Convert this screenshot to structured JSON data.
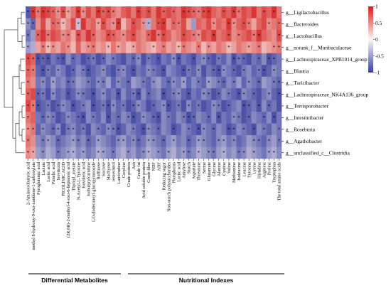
{
  "chart_data": {
    "type": "heatmap",
    "rows": [
      "g__Ligilactobacillus",
      "g__Bacteroides",
      "g__Lactobacillus",
      "g__norank_f__Muribaculaceae",
      "g__Lachnospiraceae_XPB1014_group",
      "g__Blautia",
      "g__Turicibacter",
      "g__Lachnospiraceae_NK4A136_group",
      "g__Terrisporobacter",
      "g__Intestinibacter",
      "g__Roseburia",
      "g__Agathobacter",
      "g__unclassified_c__Clostridia"
    ],
    "columns": [
      "2-Aminoisobutyric acid",
      "methyl 8-hydroxy-9-oxo-xanthene-1-carboxylate",
      "Pyroglutamic acid",
      "Lactate",
      "Lactic acid",
      "Pimelic acid",
      "Isovitexin",
      "PICOLINIC ACID",
      "(2R,6R)-2-methyl-4-oxo-6-heptanoic acid",
      "Thymyl_acetate",
      "N-Acetyl-L-Tyrosine",
      "Isovaleric acid",
      "Isobutyrylcarnitine",
      "1-O-dodecanoyl-glucopyranoside",
      "Raffinose",
      "Sucrose",
      "Stachyose",
      "resveratrol",
      "Lamivudine",
      "Coryline",
      "Crude protein",
      "Ash",
      "Crude fat",
      "Acid soluble protein",
      "Crude fiber",
      "NDF",
      "ADF",
      "Reducing sugar",
      "Non-starch polysaccharides",
      "Phosphorus",
      "Lactic acid",
      "Amylose",
      "Starch",
      "Aspartate",
      "Threonine",
      "Serine",
      "Glutamate",
      "Glycine",
      "Alanine",
      "Cystine",
      "Valine",
      "Methionine",
      "Isoleucine",
      "Leucine",
      "Tyrosine",
      "Lysine",
      "Histidine",
      "Arginine",
      "Proline",
      "Tryptophan",
      "The total amino acids"
    ],
    "values": [
      [
        -0.85,
        0.9,
        0.6,
        0.9,
        0.8,
        0.7,
        0.5,
        0.8,
        0.4,
        0.6,
        0.9,
        0.5,
        0.8,
        0.6,
        0.9,
        0.7,
        0.8,
        0.6,
        0.5,
        0.7,
        0.8,
        0.6,
        0.9,
        0.7,
        0.8,
        0.6,
        0.9,
        0.7,
        0.8,
        0.7,
        0.6,
        0.9,
        0.8,
        0.7,
        0.6,
        0.8,
        0.9,
        0.7,
        0.6,
        0.8,
        0.7,
        0.9,
        0.6,
        0.8,
        0.7,
        0.9,
        0.6,
        0.8,
        0.7,
        0.9,
        0.6
      ],
      [
        -0.6,
        -0.8,
        0.5,
        0.8,
        0.4,
        0.7,
        0.6,
        0.3,
        0.5,
        0.8,
        -0.3,
        0.9,
        0.6,
        0.7,
        0.4,
        0.8,
        0.6,
        0.5,
        0.9,
        0.3,
        0.6,
        0.8,
        0.7,
        0.5,
        -0.4,
        0.6,
        0.8,
        0.9,
        0.5,
        0.7,
        0.6,
        0.8,
        0.4,
        -0.5,
        0.7,
        0.6,
        0.8,
        0.5,
        0.7,
        0.6,
        0.9,
        0.5,
        0.7,
        0.8,
        0.6,
        0.4,
        0.7,
        0.8,
        0.5,
        0.6,
        0.7
      ],
      [
        -0.7,
        -0.5,
        0.7,
        0.9,
        0.6,
        0.8,
        0.7,
        0.5,
        0.6,
        0.4,
        0.8,
        0.6,
        0.9,
        0.7,
        0.5,
        0.6,
        0.8,
        0.7,
        0.6,
        0.5,
        0.7,
        0.8,
        0.6,
        0.5,
        0.7,
        0.9,
        0.6,
        0.8,
        0.7,
        0.5,
        0.6,
        0.8,
        0.7,
        0.6,
        0.5,
        0.8,
        0.7,
        0.9,
        0.6,
        0.7,
        0.8,
        0.5,
        0.6,
        0.7,
        0.8,
        0.6,
        0.9,
        0.7,
        0.6,
        0.5,
        0.8
      ],
      [
        -0.5,
        -0.4,
        0.4,
        0.6,
        0.3,
        0.5,
        0.4,
        0.6,
        0.5,
        0.3,
        0.7,
        0.4,
        0.5,
        0.6,
        0.4,
        0.5,
        0.3,
        0.6,
        0.4,
        0.5,
        0.3,
        0.4,
        0.6,
        0.5,
        0.4,
        0.3,
        0.5,
        0.6,
        0.4,
        0.5,
        0.3,
        0.6,
        0.5,
        0.4,
        0.6,
        0.3,
        0.5,
        0.4,
        0.6,
        0.5,
        0.3,
        0.4,
        0.6,
        0.5,
        0.4,
        0.5,
        0.6,
        0.3,
        0.4,
        0.5,
        0.6
      ],
      [
        0.8,
        0.7,
        -0.9,
        -0.8,
        -0.9,
        -0.7,
        -0.8,
        -0.9,
        -0.6,
        -0.8,
        -0.7,
        -0.9,
        -0.8,
        -0.7,
        -0.9,
        -0.8,
        -0.6,
        -0.7,
        -0.8,
        -0.9,
        -0.7,
        -0.8,
        -0.6,
        -0.9,
        -0.7,
        -0.8,
        -0.9,
        -0.7,
        -0.8,
        -0.6,
        -0.9,
        -0.7,
        -0.8,
        -0.9,
        -0.7,
        -0.6,
        -0.8,
        -0.9,
        -0.7,
        -0.8,
        -0.6,
        -0.9,
        -0.7,
        -0.8,
        -0.9,
        -0.7,
        -0.8,
        -0.6,
        -0.9,
        -0.8,
        -0.7
      ],
      [
        0.7,
        0.6,
        -0.8,
        -0.9,
        -0.7,
        -0.8,
        -0.6,
        -0.7,
        -0.9,
        -0.8,
        -0.6,
        -0.7,
        -0.9,
        -0.8,
        -0.7,
        -0.6,
        -0.8,
        -0.9,
        -0.7,
        -0.6,
        -0.8,
        -0.9,
        -0.7,
        -0.8,
        -0.6,
        -0.7,
        -0.8,
        -0.9,
        -0.6,
        -0.7,
        -0.8,
        -0.9,
        -0.7,
        -0.8,
        -0.6,
        -0.9,
        -0.7,
        -0.8,
        -0.9,
        -0.6,
        -0.7,
        -0.8,
        -0.9,
        -0.7,
        -0.6,
        -0.8,
        -0.7,
        -0.9,
        -0.8,
        -0.6,
        -0.7
      ],
      [
        0.6,
        0.5,
        -0.7,
        -0.6,
        -0.8,
        -0.5,
        -0.7,
        -0.6,
        -0.8,
        -0.7,
        -0.5,
        -0.6,
        -0.7,
        -0.8,
        -0.6,
        -0.7,
        -0.5,
        -0.8,
        -0.6,
        -0.7,
        -0.8,
        -0.5,
        -0.6,
        -0.7,
        -0.8,
        -0.6,
        -0.5,
        -0.7,
        -0.8,
        -0.6,
        -0.7,
        -0.5,
        -0.8,
        -0.6,
        -0.7,
        -0.8,
        -0.5,
        -0.6,
        -0.7,
        -0.8,
        -0.6,
        -0.7,
        -0.5,
        -0.8,
        -0.6,
        -0.7,
        -0.8,
        -0.5,
        -0.6,
        -0.7,
        -0.8
      ],
      [
        0.7,
        0.8,
        -0.8,
        -0.7,
        -0.9,
        -0.6,
        -0.8,
        -0.7,
        -0.9,
        -0.8,
        -0.6,
        -0.7,
        -0.8,
        -0.9,
        -0.7,
        -0.6,
        -0.8,
        -0.7,
        -0.9,
        -0.6,
        -0.8,
        -0.7,
        -0.9,
        -0.6,
        -0.8,
        -0.7,
        -0.6,
        -0.9,
        -0.8,
        -0.7,
        -0.6,
        -0.8,
        -0.9,
        -0.7,
        -0.8,
        -0.6,
        -0.7,
        -0.9,
        -0.8,
        -0.6,
        -0.7,
        -0.8,
        -0.9,
        -0.6,
        -0.7,
        -0.8,
        -0.9,
        -0.7,
        -0.6,
        -0.8,
        -0.9
      ],
      [
        0.8,
        0.6,
        -0.9,
        -0.8,
        -0.7,
        -0.9,
        -0.8,
        -0.6,
        -0.7,
        -0.9,
        -0.8,
        -0.7,
        -0.6,
        -0.9,
        -0.8,
        -0.7,
        -0.9,
        -0.6,
        -0.8,
        -0.7,
        -0.9,
        -0.8,
        -0.6,
        -0.7,
        -0.9,
        -0.8,
        -0.7,
        -0.6,
        -0.9,
        -0.8,
        -0.7,
        -0.9,
        -0.6,
        -0.8,
        -0.7,
        -0.9,
        -0.8,
        -0.6,
        -0.7,
        -0.9,
        -0.8,
        -0.7,
        -0.6,
        -0.9,
        -0.8,
        -0.7,
        -0.9,
        -0.6,
        -0.8,
        -0.7,
        -0.9
      ],
      [
        0.6,
        0.7,
        -0.7,
        -0.8,
        -0.6,
        -0.7,
        -0.9,
        -0.8,
        -0.6,
        -0.7,
        -0.8,
        -0.9,
        -0.6,
        -0.7,
        -0.8,
        -0.6,
        -0.9,
        -0.7,
        -0.8,
        -0.6,
        -0.7,
        -0.9,
        -0.8,
        -0.6,
        -0.7,
        -0.8,
        -0.9,
        -0.6,
        -0.7,
        -0.8,
        -0.6,
        -0.7,
        -0.9,
        -0.8,
        -0.6,
        -0.7,
        -0.8,
        -0.6,
        -0.9,
        -0.7,
        -0.8,
        -0.6,
        -0.7,
        -0.9,
        -0.8,
        -0.6,
        -0.7,
        -0.8,
        -0.6,
        -0.9,
        -0.7
      ],
      [
        0.5,
        0.6,
        -0.8,
        -0.6,
        -0.7,
        -0.8,
        -0.6,
        -0.9,
        -0.7,
        -0.6,
        -0.8,
        -0.7,
        -0.9,
        -0.6,
        -0.7,
        -0.8,
        -0.6,
        -0.7,
        -0.9,
        -0.8,
        -0.6,
        -0.7,
        -0.8,
        -0.9,
        -0.6,
        -0.7,
        -0.8,
        -0.6,
        -0.7,
        -0.9,
        -0.8,
        -0.6,
        -0.7,
        -0.8,
        -0.9,
        -0.6,
        -0.7,
        -0.8,
        -0.6,
        -0.7,
        -0.9,
        -0.8,
        -0.6,
        -0.7,
        -0.8,
        -0.9,
        -0.6,
        -0.7,
        -0.8,
        -0.6,
        -0.7
      ],
      [
        0.6,
        0.5,
        -0.6,
        -0.7,
        -0.5,
        -0.6,
        -0.8,
        -0.7,
        -0.6,
        -0.5,
        -0.7,
        -0.6,
        -0.8,
        -0.7,
        -0.5,
        -0.6,
        -0.7,
        -0.8,
        -0.6,
        -0.5,
        -0.7,
        -0.6,
        -0.8,
        -0.7,
        -0.5,
        -0.6,
        -0.7,
        -0.8,
        -0.6,
        -0.5,
        -0.7,
        -0.6,
        -0.8,
        -0.7,
        -0.5,
        -0.6,
        -0.7,
        -0.8,
        -0.6,
        -0.5,
        -0.7,
        -0.6,
        -0.8,
        -0.7,
        -0.5,
        -0.6,
        -0.7,
        -0.8,
        -0.6,
        -0.5,
        -0.7
      ],
      [
        0.5,
        0.4,
        -0.5,
        -0.6,
        -0.4,
        -0.5,
        -0.7,
        -0.6,
        -0.5,
        -0.4,
        -0.6,
        -0.5,
        -0.7,
        -0.6,
        -0.4,
        -0.5,
        -0.6,
        -0.7,
        -0.5,
        -0.4,
        -0.6,
        -0.5,
        -0.7,
        -0.6,
        -0.4,
        -0.5,
        -0.6,
        -0.7,
        -0.5,
        -0.4,
        -0.6,
        -0.5,
        -0.7,
        -0.6,
        -0.4,
        -0.5,
        -0.6,
        -0.7,
        -0.5,
        -0.4,
        -0.6,
        -0.5,
        -0.7,
        -0.6,
        -0.4,
        -0.5,
        -0.6,
        -0.7,
        -0.5,
        -0.4,
        -0.6
      ]
    ],
    "significance": [
      "********* **  ****    * *  * * ******  * **    * * ",
      "**   ***  *   ** **  * ** ** **      *  ** **   * *",
      "* * *  ** *  *  ** * *  * **   * **  *  * *  **   *",
      "*  ***  *   **  * *  *   * *  **  * *   *   * *  **",
      "***** ** *  ** * *   ** * *  **  * ** *  ***  * ** ",
      "** ** *  * **  *  ** *  ** *   ** *  *** * *  ** * ",
      "*  * *  **  * **  * *  * *  ** *  * * ** *  * *  **",
      "* ** *  * ** * *  *  ** *  * ** *  ** * * ** *  * *",
      "*** * ** * * * *** * **  * ** * * *  ** *  ** * *  ",
      "*  ***  * ** *  * * ** * ** *  ***  * *  ** *  * * ",
      "** * ** ** *  * ***  * ** *  *  * ** *  ** * * *  *",
      "*  ** *  ** * *   ** ** ** * *  * **  ** *   ** * *",
      "** *  * ** *  ** *  *  ** * *  ** * ** *  ** *  ** "
    ],
    "colorbar": {
      "ticks": [
        "1",
        "0.5",
        "0",
        "-0.5",
        "-1"
      ],
      "range": [
        -1,
        1
      ]
    },
    "colors": {
      "low": "#3a3fa0",
      "mid": "#fbf7f2",
      "high": "#d42020"
    },
    "groups": [
      "Differential Metabolites",
      "Nutritional Indexes"
    ],
    "group_spans": [
      [
        0,
        20
      ],
      [
        20,
        51
      ]
    ],
    "dendrogram": {
      "cluster_a": [
        0,
        3
      ],
      "cluster_b": [
        4,
        12
      ]
    }
  }
}
